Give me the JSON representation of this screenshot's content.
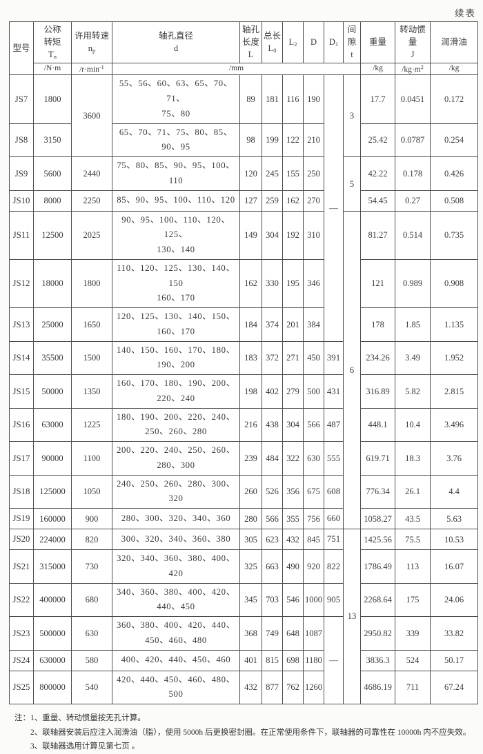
{
  "page": {
    "continued_label": "续表"
  },
  "table": {
    "mm_unit": "/mm",
    "columns": [
      {
        "key": "model",
        "label": "型号"
      },
      {
        "key": "torque",
        "label": "公称\n转矩",
        "sym": "T",
        "sub": "n",
        "unit": "/N·m"
      },
      {
        "key": "speed",
        "label": "许用转速",
        "sym": "n",
        "sub": "p",
        "unit": "/r·min",
        "unit_sup": "-1"
      },
      {
        "key": "d",
        "label": "轴孔直径",
        "sym": "d"
      },
      {
        "key": "L",
        "label": "轴孔\n长度",
        "sym": "L"
      },
      {
        "key": "L0",
        "label": "总长",
        "sym": "L",
        "sub": "0"
      },
      {
        "key": "L2",
        "sym": "L",
        "sub": "2"
      },
      {
        "key": "D",
        "sym": "D"
      },
      {
        "key": "D1",
        "sym": "D",
        "sub": "1"
      },
      {
        "key": "t",
        "label": "间隙",
        "sym": "t"
      },
      {
        "key": "w",
        "label": "重量",
        "unit": "/kg"
      },
      {
        "key": "J",
        "label": "转动惯量",
        "sym": "J",
        "unit": "/kg·m",
        "unit_sup": "2"
      },
      {
        "key": "oil",
        "label": "润滑油",
        "unit": "/kg"
      }
    ],
    "rows": [
      {
        "model": "JS7",
        "torque": "1800",
        "speed": {
          "v": "3600",
          "rs": 2
        },
        "d": "55、56、60、63、65、70、71、\n75、80",
        "L": "89",
        "L0": "181",
        "L2": "116",
        "D": "190",
        "D1": {
          "v": "—",
          "rs": 7
        },
        "t": {
          "v": "3",
          "rs": 2
        },
        "w": "17.7",
        "J": "0.0451",
        "oil": "0.172"
      },
      {
        "model": "JS8",
        "torque": "3150",
        "speed": null,
        "d": "65、70、71、75、80、85、90、95",
        "L": "98",
        "L0": "199",
        "L2": "122",
        "D": "210",
        "D1": null,
        "t": null,
        "w": "25.42",
        "J": "0.0787",
        "oil": "0.254"
      },
      {
        "model": "JS9",
        "torque": "5600",
        "speed": "2440",
        "d": "75、80、85、90、95、100、110",
        "L": "120",
        "L0": "245",
        "L2": "155",
        "D": "250",
        "D1": null,
        "t": {
          "v": "5",
          "rs": 2
        },
        "w": "42.22",
        "J": "0.178",
        "oil": "0.426"
      },
      {
        "model": "JS10",
        "torque": "8000",
        "speed": "2250",
        "d": "85、90、95、100、110、120",
        "L": "127",
        "L0": "259",
        "L2": "162",
        "D": "270",
        "D1": null,
        "t": null,
        "w": "54.45",
        "J": "0.27",
        "oil": "0.508"
      },
      {
        "model": "JS11",
        "torque": "12500",
        "speed": "2025",
        "d": "90、95、100、110、120、125、\n130、140",
        "L": "149",
        "L0": "304",
        "L2": "192",
        "D": "310",
        "D1": null,
        "t": {
          "v": "6",
          "rs": 9
        },
        "w": "81.27",
        "J": "0.514",
        "oil": "0.735"
      },
      {
        "model": "JS12",
        "torque": "18000",
        "speed": "1800",
        "d": "110、120、125、130、140、150\n160、170",
        "L": "162",
        "L0": "330",
        "L2": "195",
        "D": "346",
        "D1": null,
        "t": null,
        "w": "121",
        "J": "0.989",
        "oil": "0.908"
      },
      {
        "model": "JS13",
        "torque": "25000",
        "speed": "1650",
        "d": "120、125、130、140、150、\n160、170",
        "L": "184",
        "L0": "374",
        "L2": "201",
        "D": "384",
        "D1": null,
        "t": null,
        "w": "178",
        "J": "1.85",
        "oil": "1.135"
      },
      {
        "model": "JS14",
        "torque": "35500",
        "speed": "1500",
        "d": "140、150、160、170、180、\n190、200",
        "L": "183",
        "L0": "372",
        "L2": "271",
        "D": "450",
        "D1": "391",
        "t": null,
        "w": "234.26",
        "J": "3.49",
        "oil": "1.952"
      },
      {
        "model": "JS15",
        "torque": "50000",
        "speed": "1350",
        "d": "160、170、180、190、200、\n220、240",
        "L": "198",
        "L0": "402",
        "L2": "279",
        "D": "500",
        "D1": "431",
        "t": null,
        "w": "316.89",
        "J": "5.82",
        "oil": "2.815"
      },
      {
        "model": "JS16",
        "torque": "63000",
        "speed": "1225",
        "d": "180、190、200、220、240、\n250、260、280",
        "L": "216",
        "L0": "438",
        "L2": "304",
        "D": "566",
        "D1": "487",
        "t": null,
        "w": "448.1",
        "J": "10.4",
        "oil": "3.496"
      },
      {
        "model": "JS17",
        "torque": "90000",
        "speed": "1100",
        "d": "200、220、240、250、260、\n280、300",
        "L": "239",
        "L0": "484",
        "L2": "322",
        "D": "630",
        "D1": "555",
        "t": null,
        "w": "619.71",
        "J": "18.3",
        "oil": "3.76"
      },
      {
        "model": "JS18",
        "torque": "125000",
        "speed": "1050",
        "d": "240、250、260、280、300、320",
        "L": "260",
        "L0": "526",
        "L2": "356",
        "D": "675",
        "D1": "608",
        "t": null,
        "w": "776.34",
        "J": "26.1",
        "oil": "4.4"
      },
      {
        "model": "JS19",
        "torque": "160000",
        "speed": "900",
        "d": "280、300、320、340、360",
        "L": "280",
        "L0": "566",
        "L2": "355",
        "D": "756",
        "D1": "660",
        "t": null,
        "w": "1058.27",
        "J": "43.5",
        "oil": "5.63"
      },
      {
        "model": "JS20",
        "torque": "224000",
        "speed": "820",
        "d": "300、320、340、360、380",
        "L": "305",
        "L0": "623",
        "L2": "432",
        "D": "845",
        "D1": "751",
        "t": {
          "v": "13",
          "rs": 6
        },
        "w": "1425.56",
        "J": "75.5",
        "oil": "10.53"
      },
      {
        "model": "JS21",
        "torque": "315000",
        "speed": "730",
        "d": "320、340、360、380、400、420",
        "L": "325",
        "L0": "663",
        "L2": "490",
        "D": "920",
        "D1": "822",
        "t": null,
        "w": "1786.49",
        "J": "113",
        "oil": "16.07"
      },
      {
        "model": "JS22",
        "torque": "400000",
        "speed": "680",
        "d": "340、360、380、400、420、\n440、450",
        "L": "345",
        "L0": "703",
        "L2": "546",
        "D": "1000",
        "D1": "905",
        "t": null,
        "w": "2268.64",
        "J": "175",
        "oil": "24.06"
      },
      {
        "model": "JS23",
        "torque": "500000",
        "speed": "630",
        "d": "360、380、400、420、440、\n450、460、480",
        "L": "368",
        "L0": "749",
        "L2": "648",
        "D": "1087",
        "D1": {
          "v": "—",
          "rs": 3
        },
        "t": null,
        "w": "2950.82",
        "J": "339",
        "oil": "33.82"
      },
      {
        "model": "JS24",
        "torque": "630000",
        "speed": "580",
        "d": "400、420、440、450、460",
        "L": "401",
        "L0": "815",
        "L2": "698",
        "D": "1180",
        "D1": null,
        "t": null,
        "w": "3836.3",
        "J": "524",
        "oil": "50.17"
      },
      {
        "model": "JS25",
        "torque": "800000",
        "speed": "540",
        "d": "420、440、450、460、480、500",
        "L": "432",
        "L0": "877",
        "L2": "762",
        "D": "1260",
        "D1": null,
        "t": null,
        "w": "4686.19",
        "J": "711",
        "oil": "67.24"
      }
    ]
  },
  "notes": {
    "prefix": "注：",
    "items": [
      "1、重量、转动惯量按无孔计算。",
      "2、联轴器安装后应注入润滑油（脂），使用 5000h 后更换密封圈。在正常使用条件下，联轴器的可靠性在 10000h 内不应失效。",
      "3、联轴器选用计算见第七页 。"
    ]
  }
}
